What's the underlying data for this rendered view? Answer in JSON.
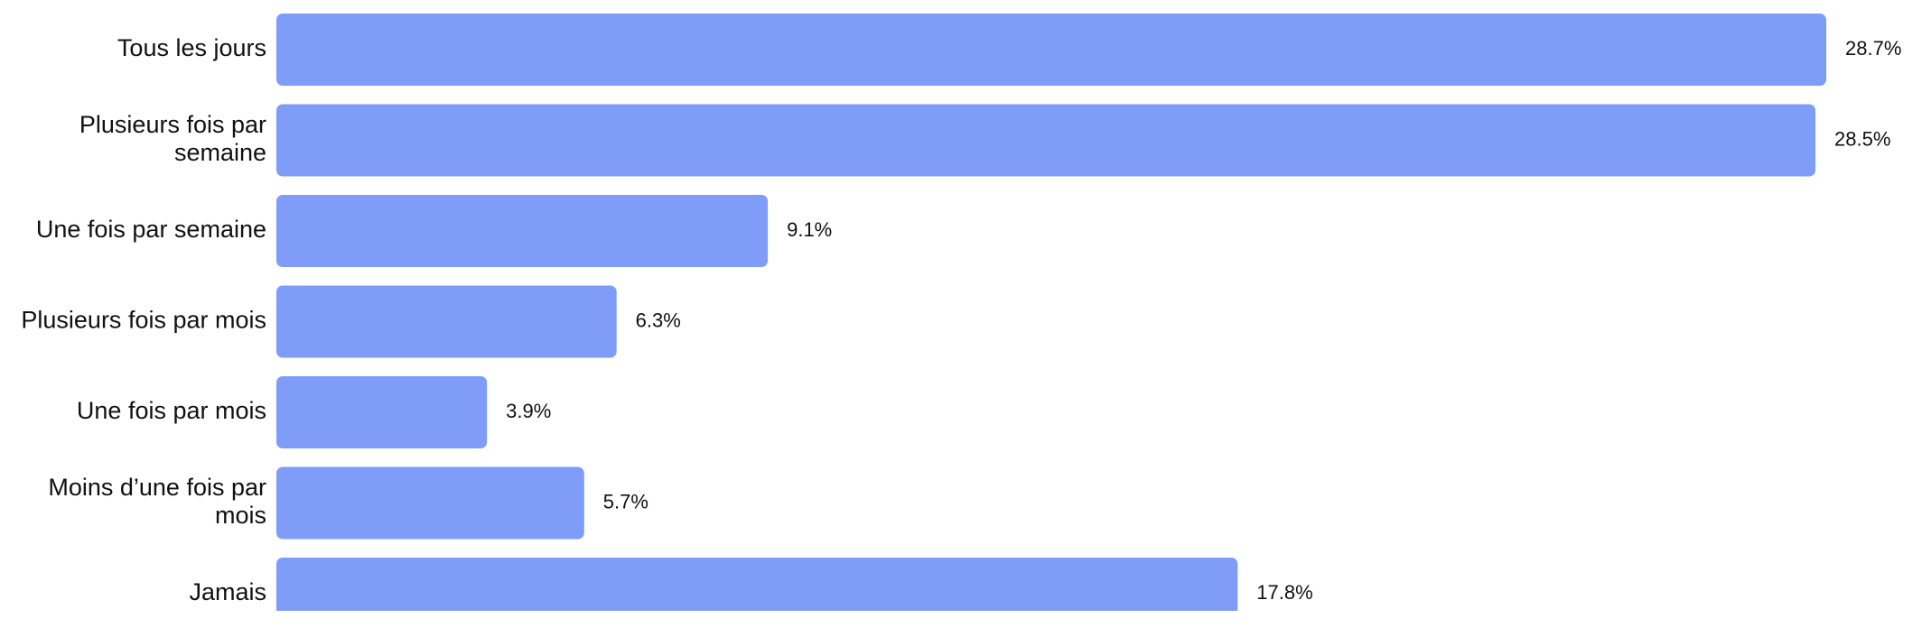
{
  "chart_data": {
    "type": "bar",
    "orientation": "horizontal",
    "categories": [
      [
        "Tous les jours"
      ],
      [
        "Plusieurs fois par",
        "semaine"
      ],
      [
        "Une fois par semaine"
      ],
      [
        "Plusieurs fois par mois"
      ],
      [
        "Une fois par mois"
      ],
      [
        "Moins d’une fois par",
        "mois"
      ],
      [
        "Jamais"
      ]
    ],
    "values": [
      28.7,
      28.5,
      9.1,
      6.3,
      3.9,
      5.7,
      17.8
    ],
    "value_labels": [
      "28.7%",
      "28.5%",
      "9.1%",
      "6.3%",
      "3.9%",
      "5.7%",
      "17.8%"
    ],
    "unit": "%",
    "title": "",
    "xlabel": "",
    "ylabel": "",
    "xlim": [
      0,
      28.7
    ],
    "grid": false,
    "legend": "none",
    "bar_color": "#7f9cf8",
    "text_color": "#111111"
  }
}
